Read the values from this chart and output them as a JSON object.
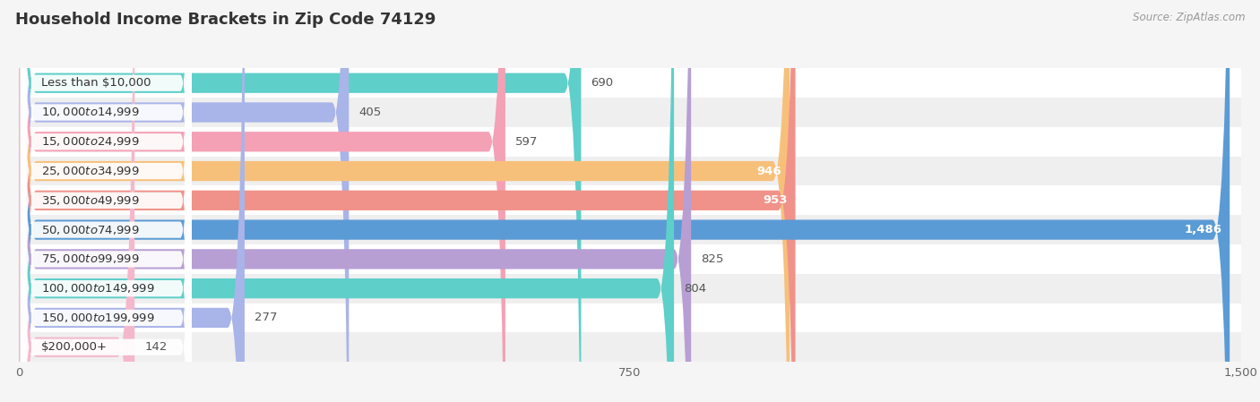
{
  "title": "Household Income Brackets in Zip Code 74129",
  "source": "Source: ZipAtlas.com",
  "categories": [
    "Less than $10,000",
    "$10,000 to $14,999",
    "$15,000 to $24,999",
    "$25,000 to $34,999",
    "$35,000 to $49,999",
    "$50,000 to $74,999",
    "$75,000 to $99,999",
    "$100,000 to $149,999",
    "$150,000 to $199,999",
    "$200,000+"
  ],
  "values": [
    690,
    405,
    597,
    946,
    953,
    1486,
    825,
    804,
    277,
    142
  ],
  "bar_colors": [
    "#5ecfc9",
    "#a9b4e8",
    "#f4a0b5",
    "#f7c07a",
    "#f0928a",
    "#5b9bd5",
    "#b79fd4",
    "#5ecfc9",
    "#a9b4e8",
    "#f4b8cc"
  ],
  "label_inside": [
    false,
    false,
    false,
    true,
    true,
    true,
    false,
    false,
    false,
    false
  ],
  "xlim": [
    0,
    1500
  ],
  "xticks": [
    0,
    750,
    1500
  ],
  "bar_height": 0.68,
  "background_color": "#f5f5f5",
  "row_bg_light": "#ffffff",
  "row_bg_dark": "#efefef",
  "title_fontsize": 13,
  "label_fontsize": 9.5,
  "tick_fontsize": 9.5,
  "value_fontsize": 9.5
}
